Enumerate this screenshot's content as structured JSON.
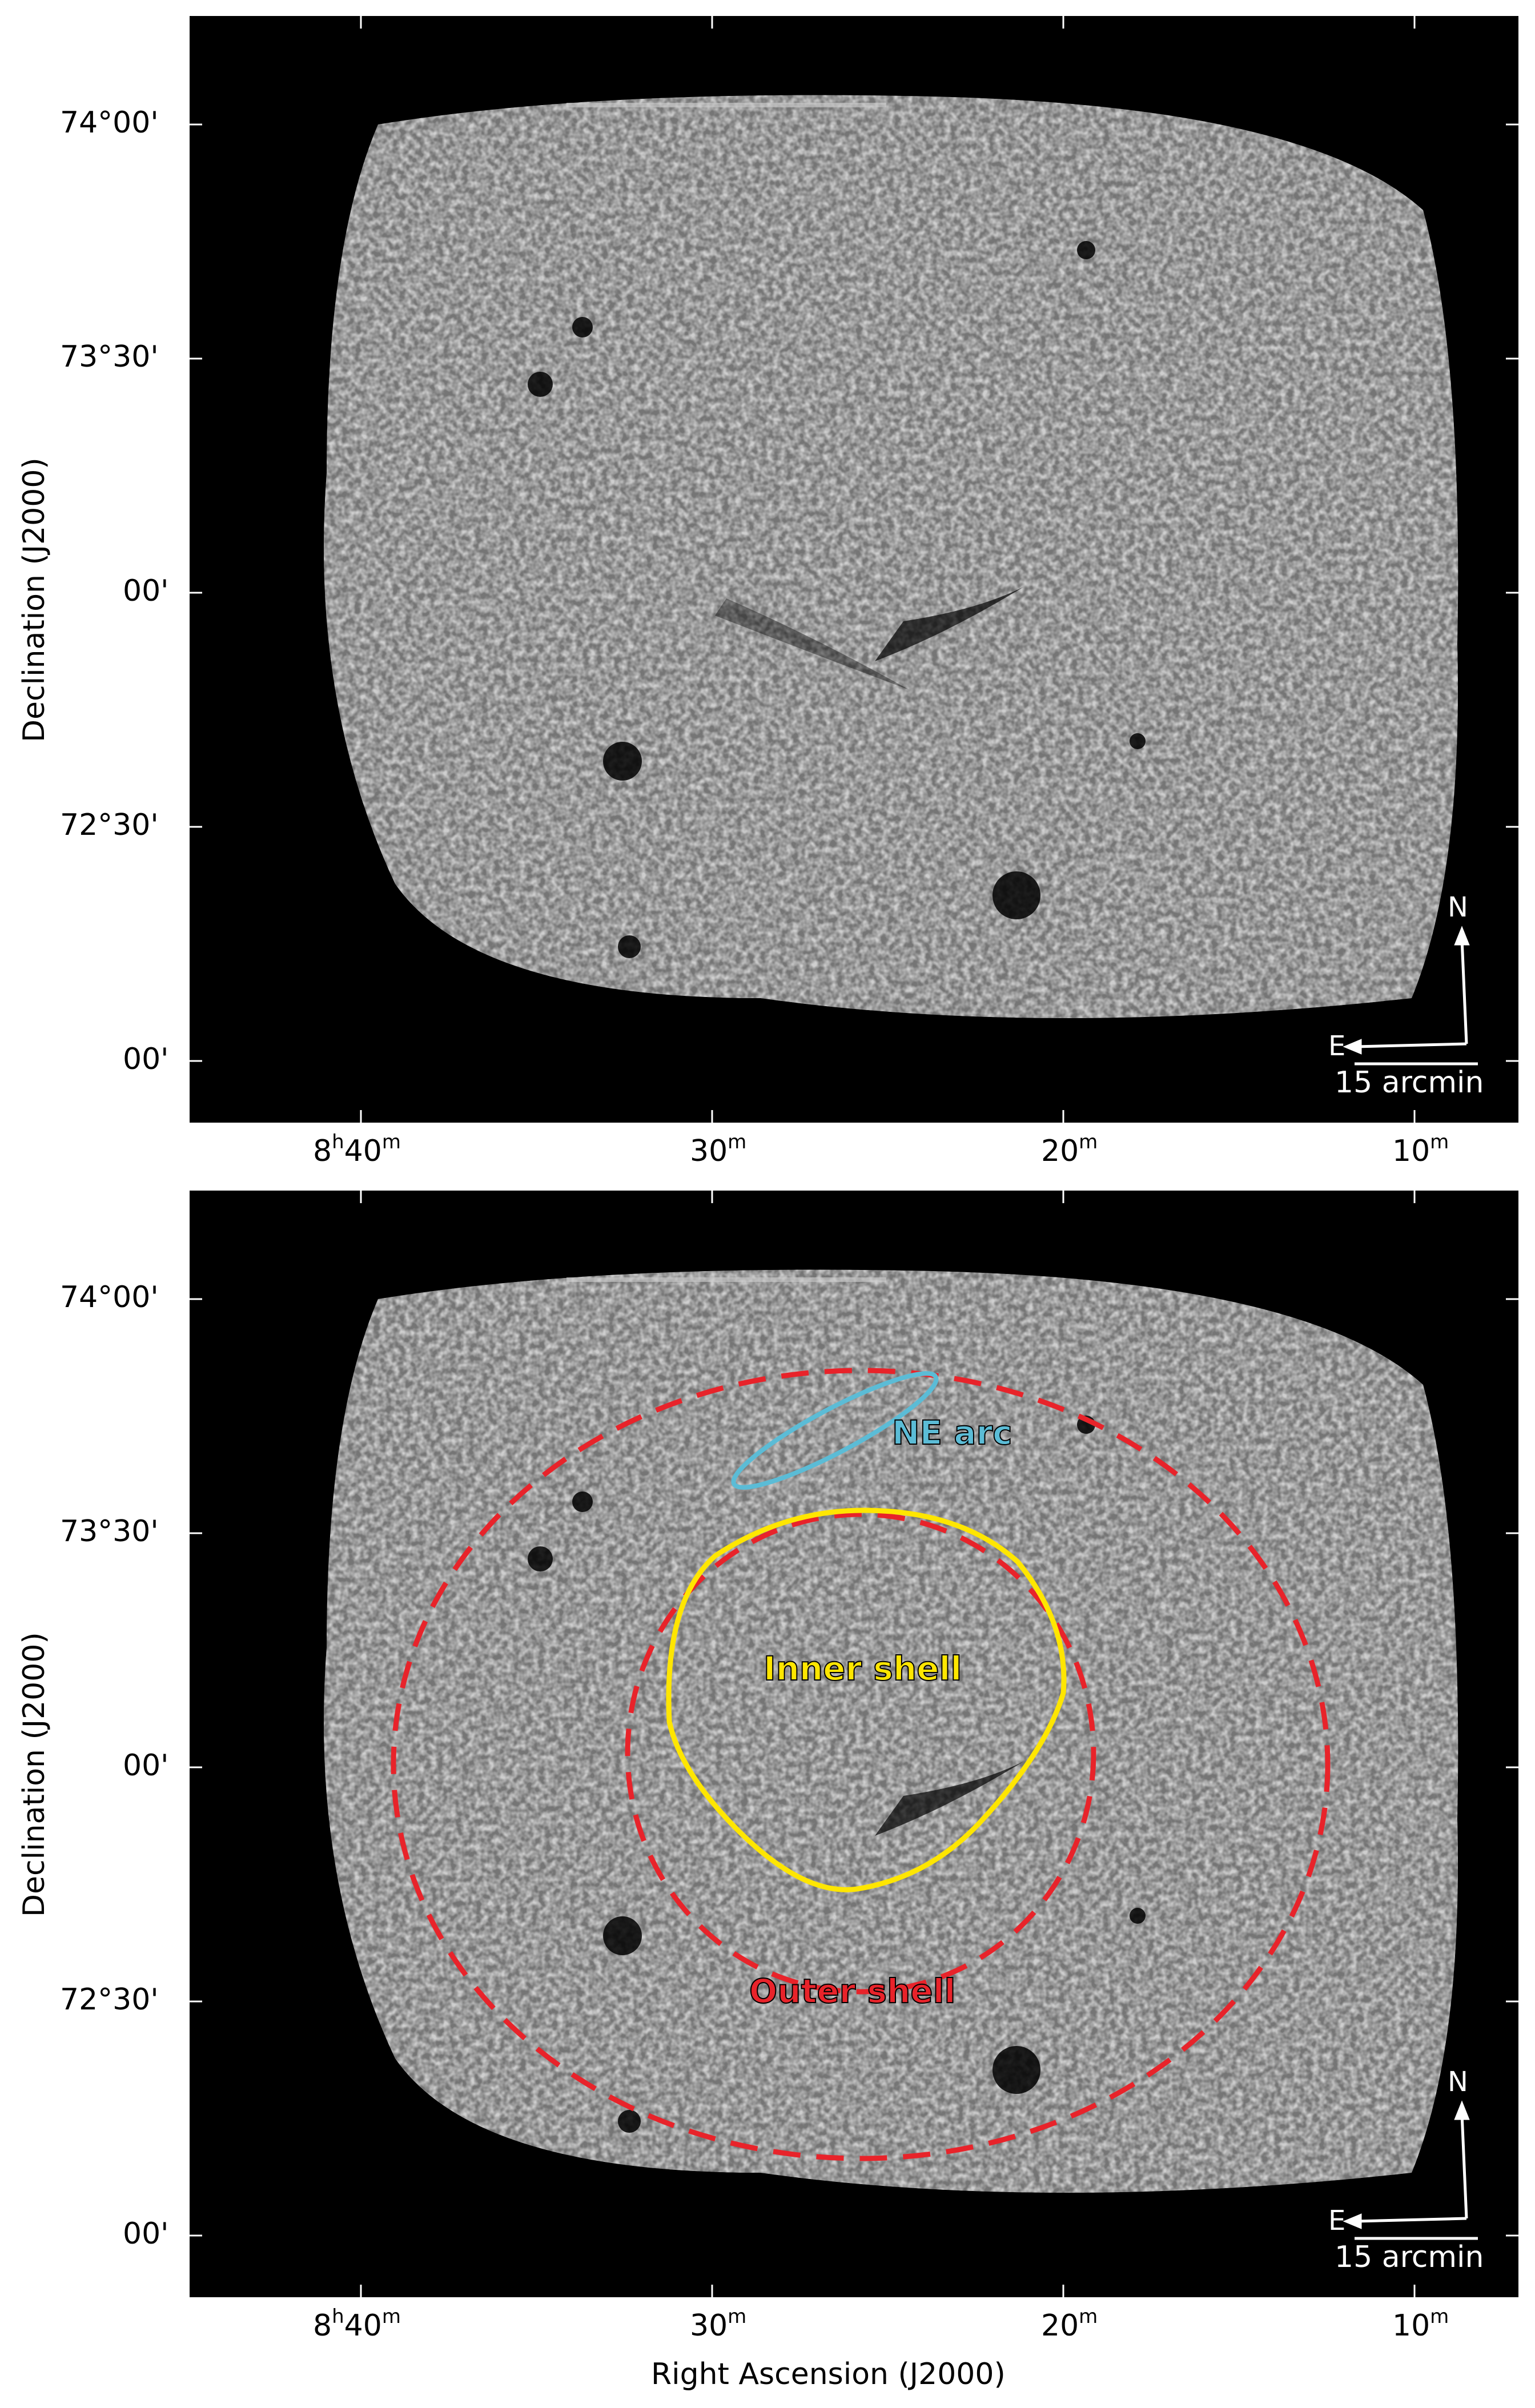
{
  "panels": [
    {
      "y_ticks": [
        "74°00'",
        "73°30'",
        "00'",
        "72°30'",
        "00'"
      ],
      "x_ticks": [
        {
          "main": "8",
          "sup1": "h",
          "mid": "40",
          "sup2": "m"
        },
        {
          "main": "",
          "sup1": "",
          "mid": "30",
          "sup2": "m"
        },
        {
          "main": "",
          "sup1": "",
          "mid": "20",
          "sup2": "m"
        },
        {
          "main": "",
          "sup1": "",
          "mid": "10",
          "sup2": "m"
        }
      ],
      "ylabel": "Declination (J2000)",
      "xlabel": "",
      "compass": {
        "north": "N",
        "east": "E",
        "scale": "15 arcmin"
      },
      "annotations": []
    },
    {
      "y_ticks": [
        "74°00'",
        "73°30'",
        "00'",
        "72°30'",
        "00'"
      ],
      "x_ticks": [
        {
          "main": "8",
          "sup1": "h",
          "mid": "40",
          "sup2": "m"
        },
        {
          "main": "",
          "sup1": "",
          "mid": "30",
          "sup2": "m"
        },
        {
          "main": "",
          "sup1": "",
          "mid": "20",
          "sup2": "m"
        },
        {
          "main": "",
          "sup1": "",
          "mid": "10",
          "sup2": "m"
        }
      ],
      "ylabel": "Declination (J2000)",
      "xlabel": "Right Ascension (J2000)",
      "compass": {
        "north": "N",
        "east": "E",
        "scale": "15 arcmin"
      },
      "annotations": [
        {
          "label": "NE arc",
          "color": "#5bbcd6"
        },
        {
          "label": "Inner shell",
          "color": "#ffe600"
        },
        {
          "label": "Outer shell",
          "color": "#e8232a"
        }
      ]
    }
  ]
}
